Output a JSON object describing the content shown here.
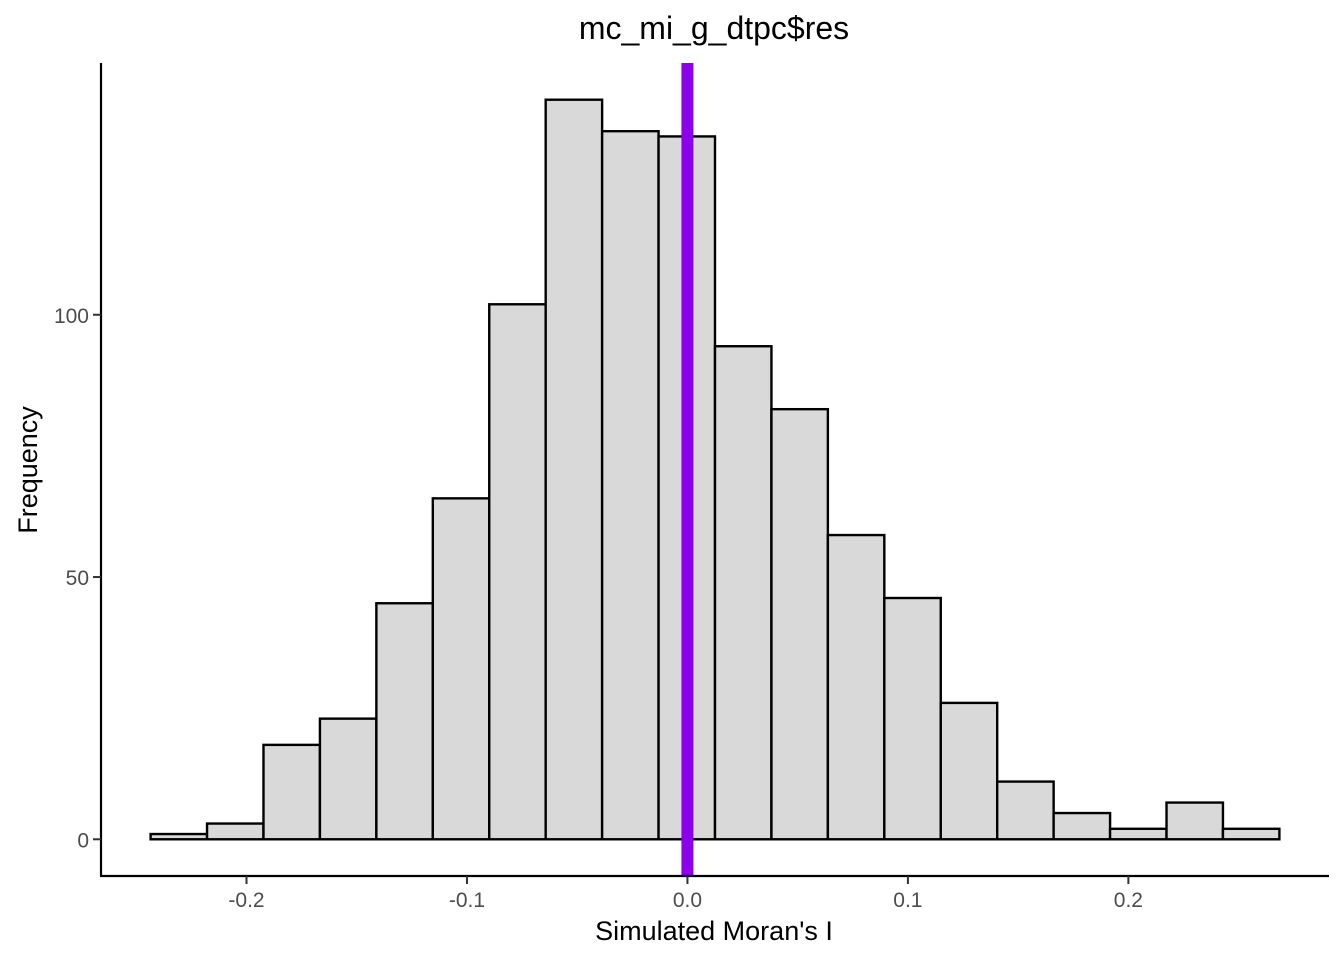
{
  "chart_data": {
    "type": "bar",
    "title": "mc_mi_g_dtpc$res",
    "xlabel": "Simulated Moran's I",
    "ylabel": "Frequency",
    "xlim": [
      -0.266,
      0.291
    ],
    "ylim": [
      -7,
      148
    ],
    "x_ticks": [
      -0.2,
      -0.1,
      0.0,
      0.1,
      0.2
    ],
    "x_tick_labels": [
      "-0.2",
      "-0.1",
      "0.0",
      "0.1",
      "0.2"
    ],
    "y_ticks": [
      0,
      50,
      100
    ],
    "y_tick_labels": [
      "0",
      "50",
      "100"
    ],
    "bin_edges": [
      -0.2435,
      -0.2179,
      -0.1923,
      -0.1667,
      -0.1411,
      -0.1155,
      -0.0899,
      -0.0643,
      -0.0387,
      -0.0131,
      0.0125,
      0.0381,
      0.0637,
      0.0893,
      0.1149,
      0.1405,
      0.1661,
      0.1917,
      0.2173,
      0.2429,
      0.2685
    ],
    "values": [
      1,
      3,
      18,
      23,
      45,
      65,
      102,
      141,
      135,
      134,
      94,
      82,
      58,
      46,
      26,
      11,
      5,
      2,
      7,
      2
    ],
    "observed_line": {
      "x": 0.0,
      "color": "#8b00e8"
    },
    "bar_fill": "#d9d9d9",
    "bar_stroke": "#000000",
    "grid": false,
    "legend": "none"
  }
}
